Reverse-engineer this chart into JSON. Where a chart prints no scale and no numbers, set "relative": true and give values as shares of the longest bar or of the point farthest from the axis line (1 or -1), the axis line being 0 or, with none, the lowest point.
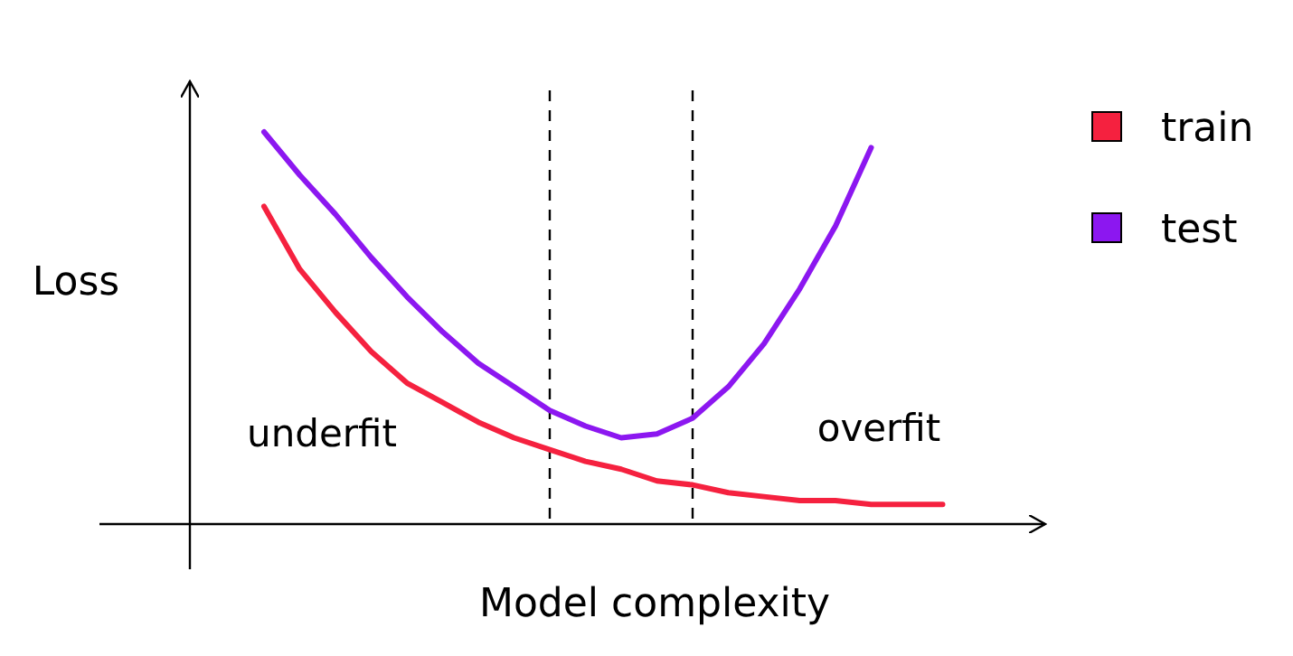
{
  "chart_data": {
    "type": "line",
    "relative": true,
    "xlabel": "Model complexity",
    "ylabel": "Loss",
    "categories": [
      null,
      null,
      null,
      null,
      null,
      null,
      null,
      null,
      null,
      null,
      null,
      null,
      null,
      null,
      null,
      null,
      null,
      null,
      null,
      null
    ],
    "legend": "right",
    "grid": false,
    "marker": "none",
    "line_style": "solid",
    "series": [
      {
        "name": "train",
        "color": "#f5213f",
        "values": [
          0.81,
          0.65,
          0.54,
          0.44,
          0.36,
          0.31,
          0.26,
          0.22,
          0.19,
          0.16,
          0.14,
          0.11,
          0.1,
          0.08,
          0.07,
          0.06,
          0.06,
          0.05,
          0.05,
          0.05
        ]
      },
      {
        "name": "test",
        "color": "#8c17f0",
        "values": [
          1,
          0.89,
          0.79,
          0.68,
          0.58,
          0.49,
          0.41,
          0.35,
          0.29,
          0.25,
          0.22,
          0.23,
          0.27,
          0.35,
          0.46,
          0.6,
          0.76,
          0.96,
          null,
          null
        ]
      }
    ],
    "annotations": [
      "underfit",
      "overfit"
    ]
  }
}
